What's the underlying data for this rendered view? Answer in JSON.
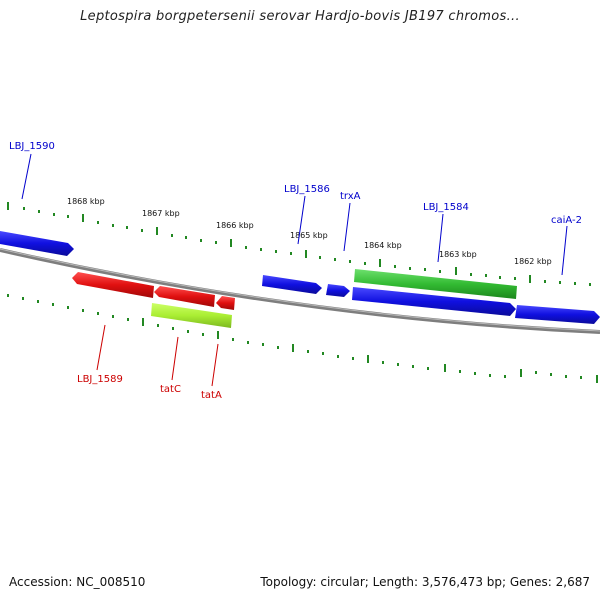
{
  "title": "Leptospira borgpetersenii serovar Hardjo-bovis JB197 chromos...",
  "accession": "Accession: NC_008510",
  "summary": "Topology: circular; Length: 3,576,473 bp; Genes: 2,687",
  "scale_labels": [
    "1868 kbp",
    "1867 kbp",
    "1866 kbp",
    "1865 kbp",
    "1864 kbp",
    "1863 kbp",
    "1862 kbp"
  ],
  "genes": [
    {
      "name": "LBJ_1590",
      "strand": "+",
      "color": "#1010e0"
    },
    {
      "name": "LBJ_1589",
      "strand": "-",
      "color": "#e01010"
    },
    {
      "name": "tatC",
      "strand": "-",
      "color": "#e01010"
    },
    {
      "name": "tatA",
      "strand": "-",
      "color": "#e01010"
    },
    {
      "name": "LBJ_1586",
      "strand": "+",
      "color": "#1010e0"
    },
    {
      "name": "trxA",
      "strand": "+",
      "color": "#1010e0"
    },
    {
      "name": "LBJ_1584",
      "strand": "+",
      "color": "#1010e0"
    },
    {
      "name": "caiA-2",
      "strand": "+",
      "color": "#1010e0"
    }
  ],
  "feature_colors": {
    "rna": "#33bb33",
    "rna_light": "#aaee33",
    "backbone": "#888888",
    "ticks": "#228822"
  }
}
